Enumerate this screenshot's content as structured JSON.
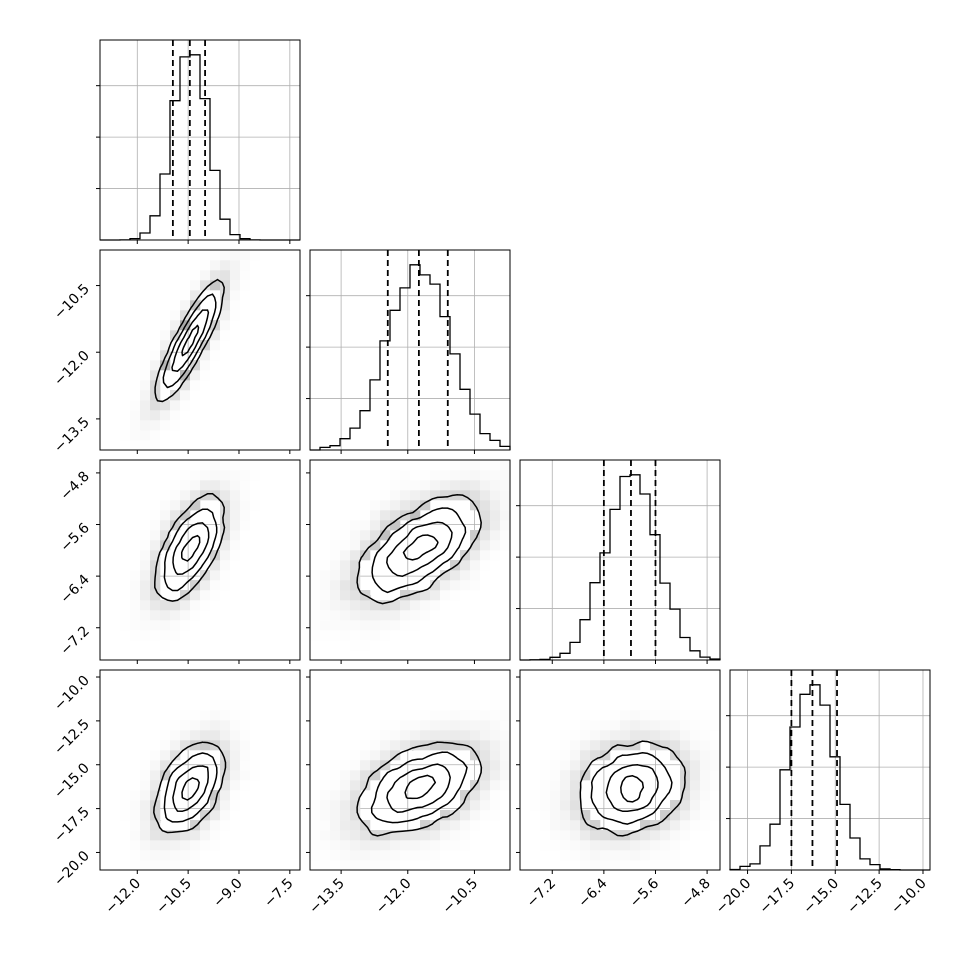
{
  "chart_data": {
    "type": "corner",
    "description_of_type": "corner plot: 1D histograms on diagonal, 2D density contours with scatter below diagonal",
    "parameters": [
      {
        "ticks": [
          -12.0,
          -10.5,
          -9.0,
          -7.5
        ],
        "tick_labels": [
          "−12.0",
          "−10.5",
          "−9.0",
          "−7.5"
        ],
        "range": [
          -13.1,
          -7.2
        ],
        "quantiles": [
          -10.95,
          -10.45,
          -10.0
        ],
        "mean": -10.45,
        "sd": 0.5
      },
      {
        "ticks": [
          -13.5,
          -12.0,
          -10.5
        ],
        "tick_labels": [
          "−13.5",
          "−12.0",
          "−10.5"
        ],
        "range": [
          -14.2,
          -9.7
        ],
        "quantiles": [
          -12.45,
          -11.75,
          -11.1
        ],
        "mean": -11.75,
        "sd": 0.7
      },
      {
        "ticks": [
          -7.2,
          -6.4,
          -5.6,
          -4.8
        ],
        "tick_labels": [
          "−7.2",
          "−6.4",
          "−5.6",
          "−4.8"
        ],
        "range": [
          -7.7,
          -4.6
        ],
        "quantiles": [
          -6.4,
          -5.98,
          -5.6
        ],
        "mean": -5.98,
        "sd": 0.4
      },
      {
        "ticks": [
          -20.0,
          -17.5,
          -15.0,
          -12.5,
          -10.0
        ],
        "tick_labels": [
          "−20.0",
          "−17.5",
          "−15.0",
          "−12.5",
          "−10.0"
        ],
        "range": [
          -21.0,
          -9.6
        ],
        "quantiles": [
          -17.5,
          -16.3,
          -14.9
        ],
        "mean": -16.3,
        "sd": 1.3
      }
    ],
    "correlations": [
      [
        1.0,
        0.92,
        0.65,
        0.5
      ],
      [
        0.92,
        1.0,
        0.62,
        0.48
      ],
      [
        0.65,
        0.62,
        1.0,
        0.2
      ],
      [
        0.5,
        0.48,
        0.2,
        1.0
      ]
    ],
    "histogram_bins": 20,
    "contour_levels": "0.5, 1.0, 1.5, 2.0 sigma",
    "grid": true,
    "colors": {
      "line": "#000000",
      "grid": "#b0b0b0",
      "scatter": "#8c8c8c"
    }
  }
}
